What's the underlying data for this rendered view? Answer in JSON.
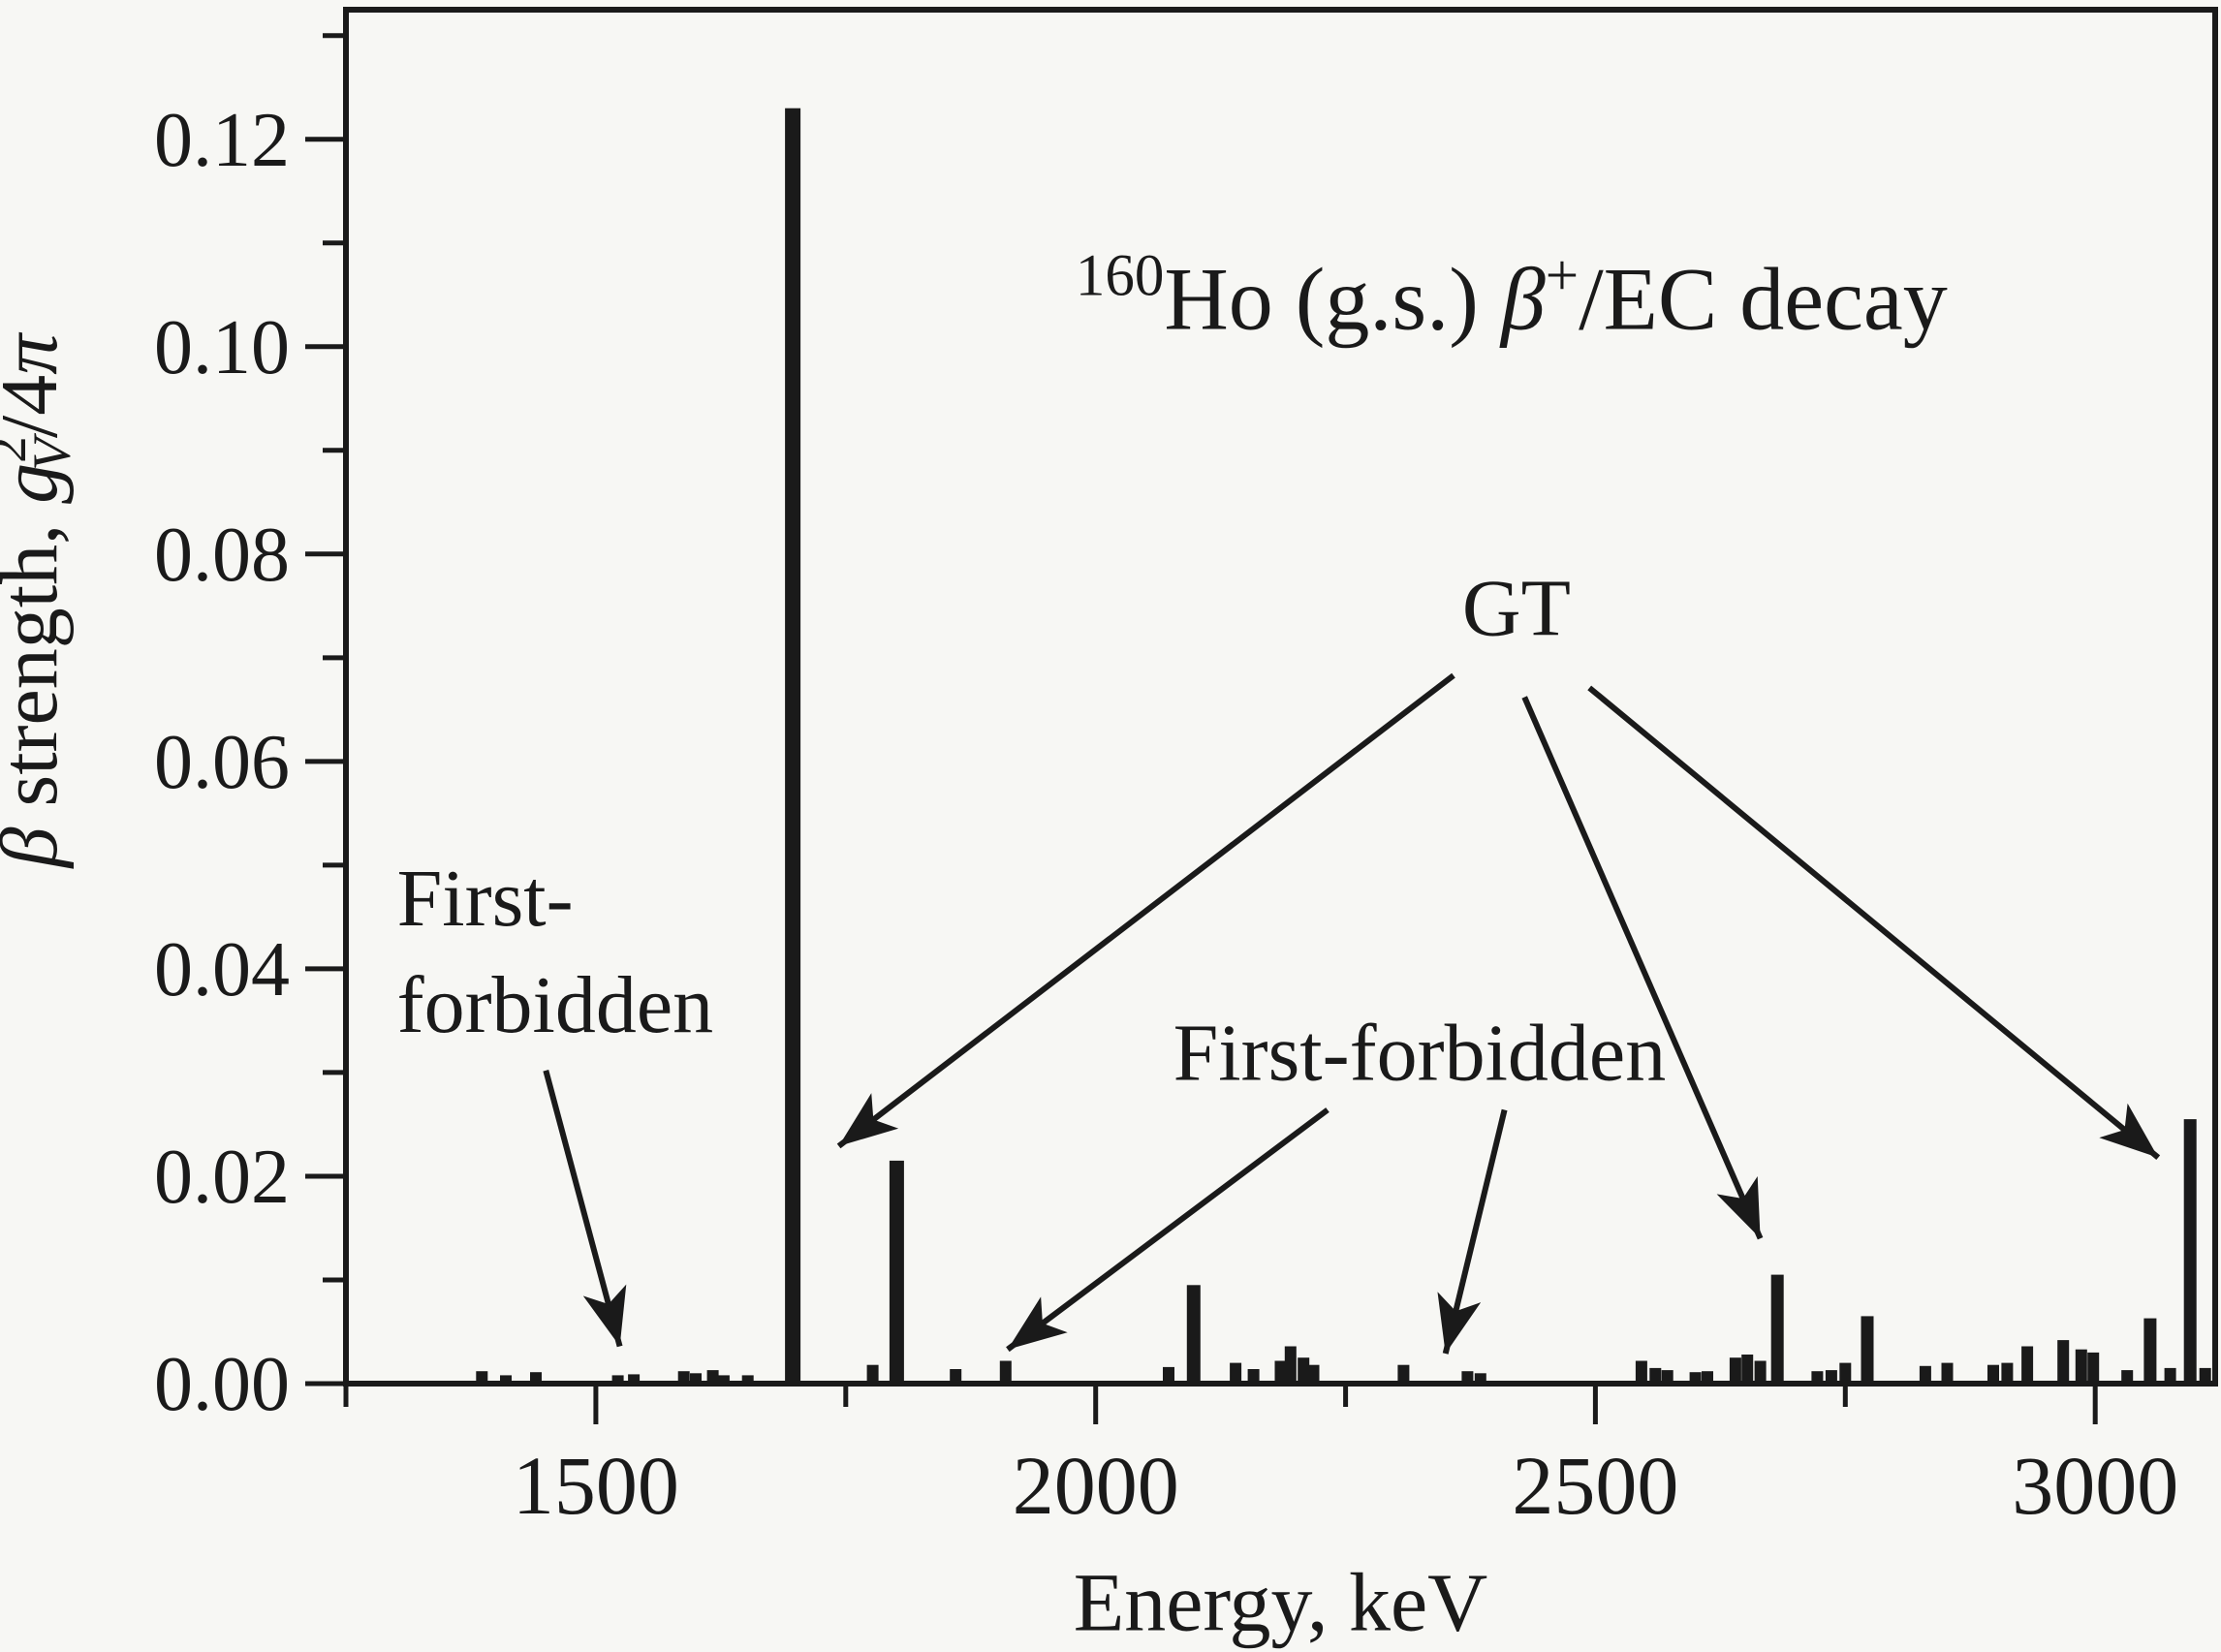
{
  "figure": {
    "background": "#f7f7f4",
    "ink_color": "#1a1a1a"
  },
  "chart_data": {
    "type": "bar",
    "title_parts": [
      {
        "t": "160",
        "sup": true
      },
      {
        "t": "Ho (g.s.) "
      },
      {
        "t": "β",
        "italic": true
      },
      {
        "t": "+",
        "sup": true
      },
      {
        "t": "/EC decay"
      }
    ],
    "title_text": "160Ho (g.s.) β+/EC decay",
    "title_pos": {
      "e": 2416,
      "v": 0.1017
    },
    "xlabel_parts": [
      {
        "t": "Energy, keV"
      }
    ],
    "xlabel_text": "Energy, keV",
    "xlabel_pos": {
      "e": 2185,
      "v": -0.0238
    },
    "ylabel_parts": [
      {
        "t": "β",
        "italic": true
      },
      {
        "t": " strength, "
      },
      {
        "t": "g",
        "italic": true
      },
      {
        "t": "2",
        "sup": true
      },
      {
        "t": "V",
        "sub": true,
        "italic": true,
        "backx": true
      },
      {
        "t": "/4"
      },
      {
        "t": "π",
        "italic": true
      }
    ],
    "ylabel_text": "β strength, g2V/4π",
    "ylabel_center_v": 0.0755,
    "xlim": [
      1250,
      3120
    ],
    "ylim": [
      0,
      0.1325
    ],
    "x_major_ticks": [
      1500,
      2000,
      2500,
      3000
    ],
    "x_major_labels": [
      "1500",
      "2000",
      "2500",
      "3000"
    ],
    "x_minor_ticks": [
      1250,
      1750,
      2250,
      2750
    ],
    "y_major_ticks": [
      0.0,
      0.02,
      0.04,
      0.06,
      0.08,
      0.1,
      0.12
    ],
    "y_major_labels": [
      "0.00",
      "0.02",
      "0.04",
      "0.06",
      "0.08",
      "0.10",
      "0.12"
    ],
    "y_minor_ticks": [
      0.01,
      0.03,
      0.05,
      0.07,
      0.09,
      0.11,
      0.13
    ],
    "grid": false,
    "legend": "none",
    "bars_note": "each bar = [energy_keV, beta_strength, optional_width_px]",
    "bars": [
      [
        1386,
        0.0012
      ],
      [
        1410,
        0.0008
      ],
      [
        1440,
        0.0011
      ],
      [
        1522,
        0.0008
      ],
      [
        1538,
        0.0009
      ],
      [
        1588,
        0.0012
      ],
      [
        1600,
        0.001
      ],
      [
        1617,
        0.0013
      ],
      [
        1628,
        0.0008
      ],
      [
        1652,
        0.0008
      ],
      [
        1697,
        0.123,
        16
      ],
      [
        1777,
        0.0018
      ],
      [
        1801,
        0.0215,
        15
      ],
      [
        1860,
        0.0014
      ],
      [
        1910,
        0.0022
      ],
      [
        2073,
        0.0016
      ],
      [
        2098,
        0.0095,
        14
      ],
      [
        2140,
        0.002
      ],
      [
        2158,
        0.0014
      ],
      [
        2185,
        0.0022
      ],
      [
        2195,
        0.0036
      ],
      [
        2208,
        0.0025
      ],
      [
        2218,
        0.0018
      ],
      [
        2308,
        0.0018
      ],
      [
        2372,
        0.0012
      ],
      [
        2385,
        0.001
      ],
      [
        2546,
        0.0022
      ],
      [
        2560,
        0.0015
      ],
      [
        2572,
        0.0013
      ],
      [
        2600,
        0.0011
      ],
      [
        2612,
        0.0012
      ],
      [
        2640,
        0.0025
      ],
      [
        2652,
        0.0028
      ],
      [
        2665,
        0.0022
      ],
      [
        2682,
        0.0105,
        13
      ],
      [
        2722,
        0.0012
      ],
      [
        2736,
        0.0013
      ],
      [
        2750,
        0.002
      ],
      [
        2772,
        0.0065,
        13
      ],
      [
        2830,
        0.0017
      ],
      [
        2852,
        0.002
      ],
      [
        2898,
        0.0018
      ],
      [
        2912,
        0.002
      ],
      [
        2932,
        0.0036
      ],
      [
        2968,
        0.0042
      ],
      [
        2986,
        0.0033
      ],
      [
        2998,
        0.003
      ],
      [
        3032,
        0.0013
      ],
      [
        3055,
        0.0063,
        13
      ],
      [
        3075,
        0.0015
      ],
      [
        3095,
        0.0255,
        13
      ],
      [
        3110,
        0.0015
      ]
    ],
    "annotations": [
      {
        "id": "gt",
        "text": "GT",
        "anchor": "middle",
        "e": 2421,
        "v": 0.0722,
        "arrows": [
          {
            "x1e": 2358,
            "y1v": 0.0683,
            "x2e": 1743,
            "y2v": 0.0229
          },
          {
            "x1e": 2429,
            "y1v": 0.0662,
            "x2e": 2665,
            "y2v": 0.014
          },
          {
            "x1e": 2494,
            "y1v": 0.0671,
            "x2e": 3063,
            "y2v": 0.0218
          }
        ]
      },
      {
        "id": "ff-left",
        "lines": [
          "First-",
          "forbidden"
        ],
        "anchor": "start",
        "e": 1301,
        "v": 0.0442,
        "line_gap_v": 0.0103,
        "arrows": [
          {
            "x1e": 1450,
            "y1v": 0.0302,
            "x2e": 1524,
            "y2v": 0.0036
          }
        ]
      },
      {
        "id": "ff-mid",
        "text": "First-forbidden",
        "anchor": "middle",
        "e": 2324,
        "v": 0.0293,
        "arrows": [
          {
            "x1e": 2232,
            "y1v": 0.0264,
            "x2e": 1912,
            "y2v": 0.0033
          },
          {
            "x1e": 2409,
            "y1v": 0.0264,
            "x2e": 2350,
            "y2v": 0.0029
          }
        ]
      }
    ]
  }
}
